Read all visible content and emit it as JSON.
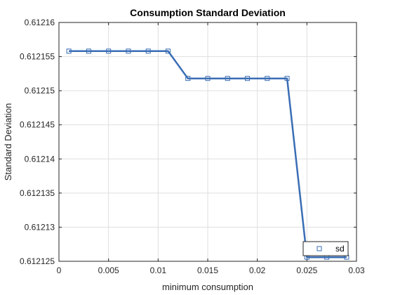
{
  "chart_data": {
    "type": "line",
    "title": "Consumption Standard Deviation",
    "xlabel": "minimum consumption",
    "ylabel": "Standard Deviation",
    "xlim": [
      0,
      0.03
    ],
    "ylim": [
      0.612125,
      0.61216
    ],
    "xticks": [
      0,
      0.005,
      0.01,
      0.015,
      0.02,
      0.025,
      0.03
    ],
    "xtick_labels": [
      "0",
      "0.005",
      "0.01",
      "0.015",
      "0.02",
      "0.025",
      "0.03"
    ],
    "yticks": [
      0.612125,
      0.61213,
      0.612135,
      0.61214,
      0.612145,
      0.61215,
      0.612155,
      0.61216
    ],
    "ytick_labels": [
      "0.612125",
      "0.61213",
      "0.612135",
      "0.61214",
      "0.612145",
      "0.61215",
      "0.612155",
      "0.61216"
    ],
    "grid": true,
    "legend_position": "bottom-right",
    "series": [
      {
        "name": "sd",
        "color": "#3a6db5",
        "marker": "square",
        "x": [
          0.001,
          0.003,
          0.005,
          0.007,
          0.009,
          0.011,
          0.013,
          0.015,
          0.017,
          0.019,
          0.021,
          0.023,
          0.025,
          0.027,
          0.029
        ],
        "y": [
          0.6121558,
          0.6121558,
          0.6121558,
          0.6121558,
          0.6121558,
          0.6121558,
          0.6121518,
          0.6121518,
          0.6121518,
          0.6121518,
          0.6121518,
          0.6121518,
          0.6121256,
          0.6121256,
          0.6121256
        ]
      }
    ]
  }
}
